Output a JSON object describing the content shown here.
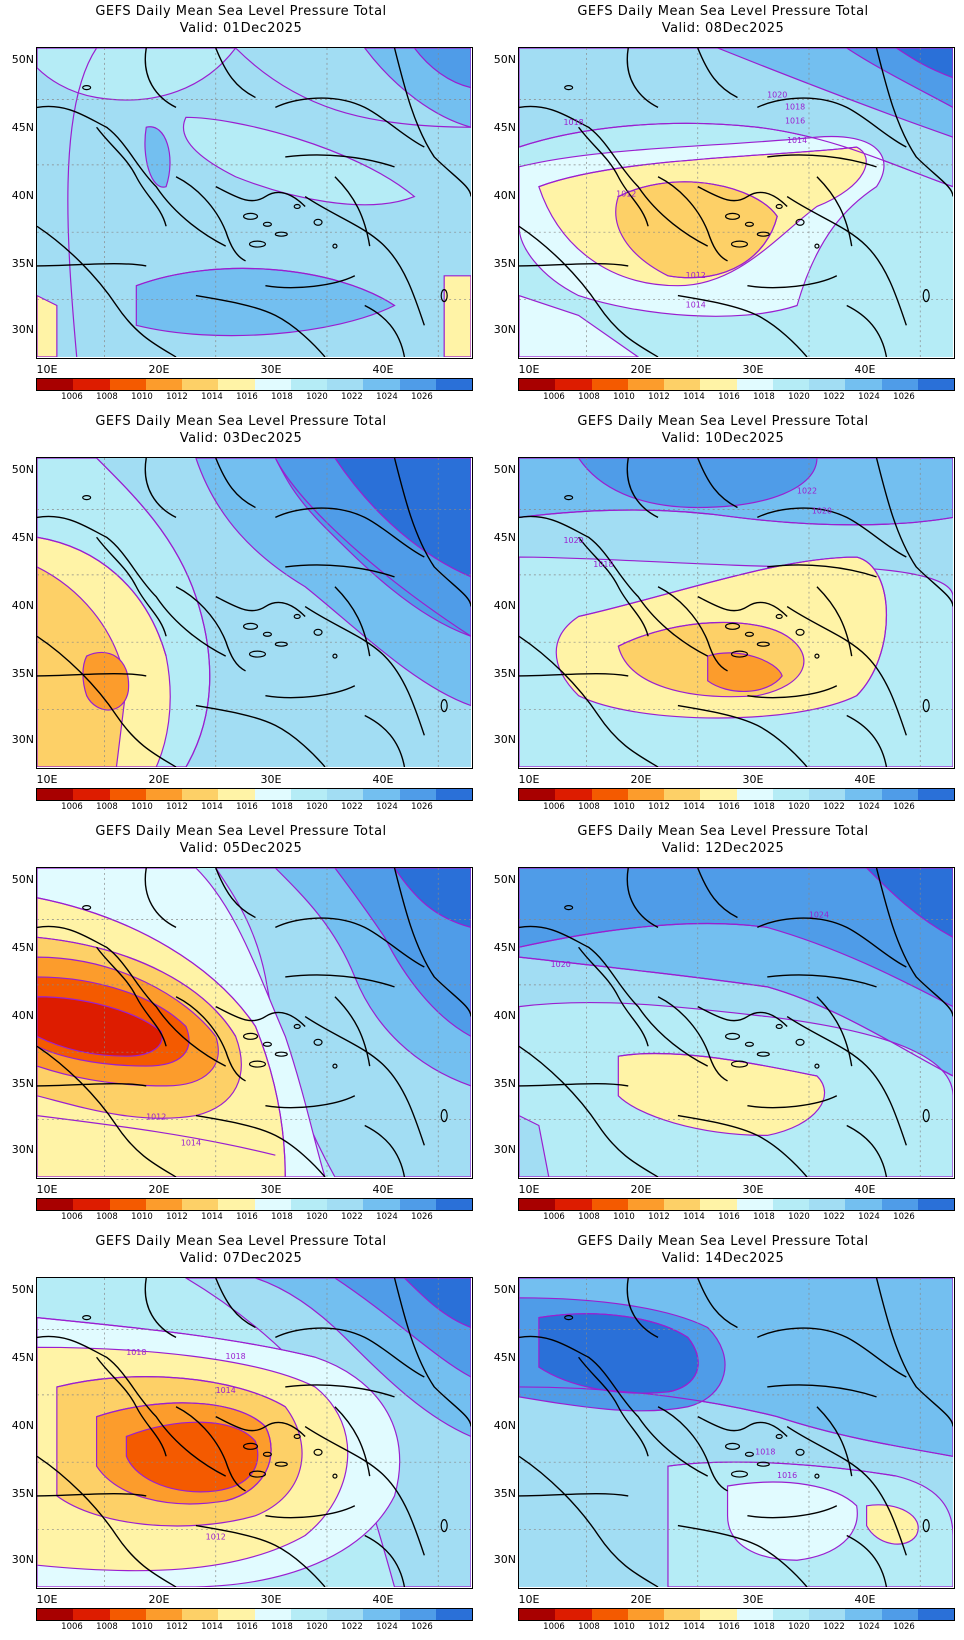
{
  "figure": {
    "title_line": "GEFS Daily Mean Sea Level Pressure Total",
    "x_ticks": [
      "10E",
      "20E",
      "30E",
      "40E"
    ],
    "y_ticks": [
      "50N",
      "45N",
      "40N",
      "35N",
      "30N"
    ],
    "colorbar_labels": [
      "1006",
      "1008",
      "1010",
      "1012",
      "1014",
      "1016",
      "1018",
      "1020",
      "1022",
      "1024",
      "1026"
    ],
    "colorbar_colors": [
      "#a80000",
      "#dd1c00",
      "#f45a00",
      "#fc9c2c",
      "#fdd067",
      "#fff3a6",
      "#e1fbff",
      "#b5ecf6",
      "#a2ddf3",
      "#73bff0",
      "#4f9ce8",
      "#2a70d8"
    ]
  },
  "panels": [
    {
      "valid": "Valid: 01Dec2025",
      "col": 0,
      "row": 0,
      "labels": []
    },
    {
      "valid": "Valid: 08Dec2025",
      "col": 1,
      "row": 0,
      "labels": [
        "1020",
        "1018",
        "1018",
        "1016",
        "1014",
        "1012",
        "1012",
        "1014"
      ]
    },
    {
      "valid": "Valid: 03Dec2025",
      "col": 0,
      "row": 1,
      "labels": []
    },
    {
      "valid": "Valid: 10Dec2025",
      "col": 1,
      "row": 1,
      "labels": [
        "1022",
        "1020",
        "1020",
        "1018"
      ]
    },
    {
      "valid": "Valid: 05Dec2025",
      "col": 0,
      "row": 2,
      "labels": [
        "1012",
        "1014"
      ]
    },
    {
      "valid": "Valid: 12Dec2025",
      "col": 1,
      "row": 2,
      "labels": [
        "1024",
        "1020"
      ]
    },
    {
      "valid": "Valid: 07Dec2025",
      "col": 0,
      "row": 3,
      "labels": [
        "1018",
        "1018",
        "1014",
        "1012"
      ]
    },
    {
      "valid": "Valid: 14Dec2025",
      "col": 1,
      "row": 3,
      "labels": [
        "1018",
        "1016"
      ]
    }
  ]
}
